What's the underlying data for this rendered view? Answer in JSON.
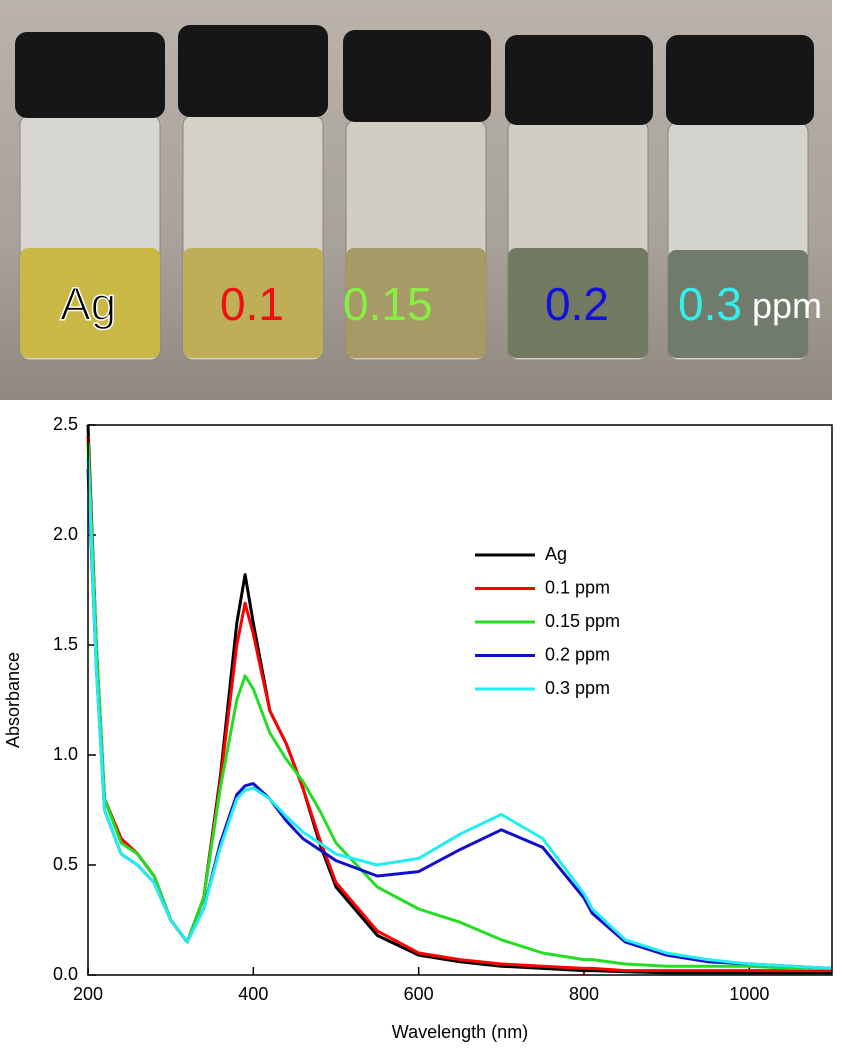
{
  "photo": {
    "labels": [
      "Ag",
      "0.1",
      "0.15",
      "0.2",
      "0.3",
      "ppm"
    ]
  },
  "chart_data": {
    "type": "line",
    "x_label": "Wavelength (nm)",
    "y_label": "Absorbance",
    "x": [
      200,
      210,
      220,
      240,
      260,
      280,
      300,
      320,
      340,
      360,
      380,
      390,
      400,
      420,
      440,
      460,
      480,
      500,
      550,
      600,
      650,
      700,
      750,
      800,
      810,
      850,
      900,
      950,
      1000,
      1050,
      1100
    ],
    "series": [
      {
        "name": "Ag",
        "color": "#000000",
        "values": [
          2.5,
          1.5,
          0.8,
          0.62,
          0.55,
          0.45,
          0.25,
          0.15,
          0.35,
          0.9,
          1.6,
          1.82,
          1.6,
          1.2,
          1.05,
          0.85,
          0.6,
          0.4,
          0.18,
          0.09,
          0.06,
          0.04,
          0.03,
          0.02,
          0.02,
          0.015,
          0.01,
          0.01,
          0.01,
          0.01,
          0.01
        ]
      },
      {
        "name": "0.1 ppm",
        "color": "#ff0000",
        "values": [
          2.45,
          1.5,
          0.8,
          0.62,
          0.55,
          0.45,
          0.25,
          0.15,
          0.35,
          0.88,
          1.5,
          1.69,
          1.55,
          1.2,
          1.05,
          0.85,
          0.62,
          0.42,
          0.2,
          0.1,
          0.07,
          0.05,
          0.04,
          0.03,
          0.03,
          0.02,
          0.02,
          0.02,
          0.02,
          0.02,
          0.02
        ]
      },
      {
        "name": "0.15 ppm",
        "color": "#22dd22",
        "values": [
          2.42,
          1.5,
          0.8,
          0.6,
          0.55,
          0.45,
          0.25,
          0.15,
          0.35,
          0.85,
          1.25,
          1.36,
          1.3,
          1.1,
          0.98,
          0.88,
          0.75,
          0.6,
          0.4,
          0.3,
          0.24,
          0.16,
          0.1,
          0.07,
          0.07,
          0.05,
          0.04,
          0.04,
          0.04,
          0.03,
          0.03
        ]
      },
      {
        "name": "0.2 ppm",
        "color": "#1010cc",
        "values": [
          2.3,
          1.4,
          0.75,
          0.55,
          0.5,
          0.42,
          0.25,
          0.15,
          0.3,
          0.6,
          0.82,
          0.86,
          0.87,
          0.8,
          0.7,
          0.62,
          0.57,
          0.52,
          0.45,
          0.47,
          0.57,
          0.66,
          0.58,
          0.35,
          0.28,
          0.15,
          0.09,
          0.06,
          0.05,
          0.04,
          0.03
        ]
      },
      {
        "name": "0.3 ppm",
        "color": "#22eeee",
        "values": [
          2.35,
          1.4,
          0.75,
          0.55,
          0.5,
          0.42,
          0.25,
          0.15,
          0.3,
          0.58,
          0.8,
          0.84,
          0.85,
          0.8,
          0.72,
          0.65,
          0.6,
          0.55,
          0.5,
          0.53,
          0.64,
          0.73,
          0.62,
          0.37,
          0.3,
          0.16,
          0.1,
          0.07,
          0.05,
          0.04,
          0.03
        ]
      }
    ],
    "xlim": [
      200,
      1100
    ],
    "xticks": [
      200,
      400,
      600,
      800,
      1000
    ],
    "ylim": [
      0,
      2.5
    ],
    "yticks": [
      {
        "value": 0,
        "label": "0.0"
      },
      0.5,
      {
        "value": 1,
        "label": "1.0"
      },
      1.5,
      {
        "value": 2,
        "label": "2.0"
      },
      2.5
    ]
  }
}
